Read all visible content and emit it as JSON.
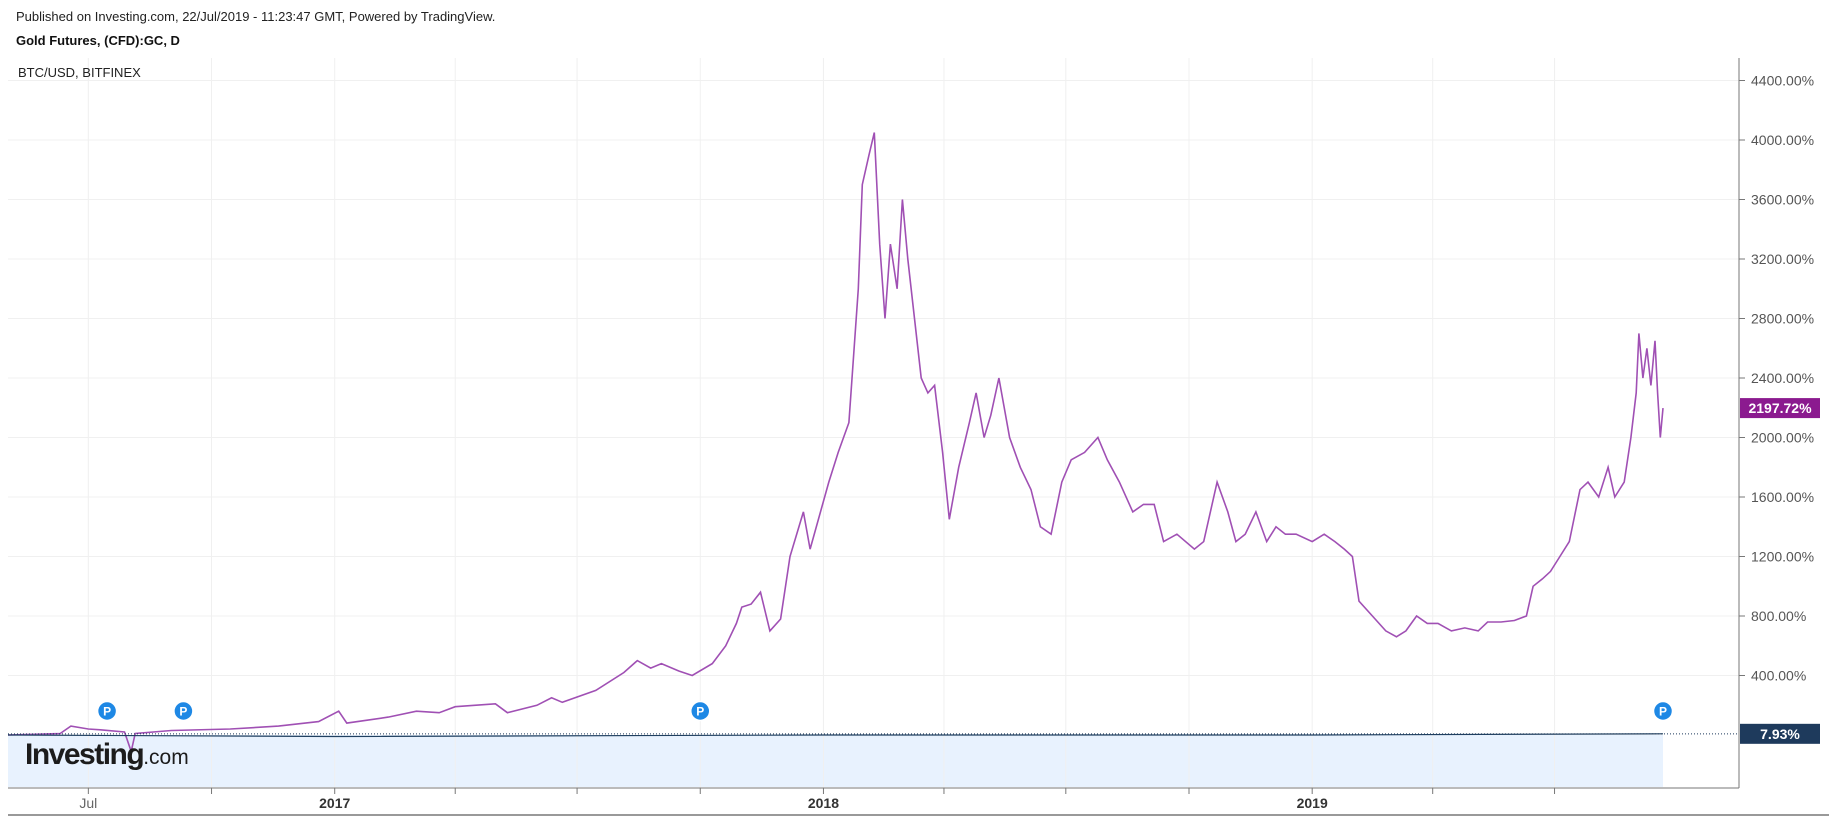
{
  "header": {
    "published": "Published on Investing.com, 22/Jul/2019 - 11:23:47 GMT, Powered by TradingView.",
    "instrument": "Gold Futures, (CFD):GC, D"
  },
  "logo": {
    "main": "Investing",
    "suffix": ".com"
  },
  "chart_data": {
    "type": "line",
    "series_label": "BTC/USD, BITFINEX",
    "yunit": "%",
    "ylim": [
      -500,
      4800
    ],
    "yticks": [
      400,
      800,
      1200,
      1600,
      2000,
      2400,
      2800,
      3200,
      3600,
      4000,
      4400
    ],
    "ytick_labels": [
      "400.00%",
      "800.00%",
      "1200.00%",
      "1600.00%",
      "2000.00%",
      "2400.00%",
      "2800.00%",
      "3200.00%",
      "3600.00%",
      "4000.00%",
      "4400.00%"
    ],
    "xlim": [
      "2016-05-02",
      "2019-09-20"
    ],
    "xticks": [
      {
        "date": "2016-07-01",
        "label": "Jul",
        "bold": false
      },
      {
        "date": "2016-10-01",
        "label": "",
        "bold": false
      },
      {
        "date": "2017-01-01",
        "label": "2017",
        "bold": true
      },
      {
        "date": "2017-04-01",
        "label": "",
        "bold": false
      },
      {
        "date": "2017-07-01",
        "label": "",
        "bold": false
      },
      {
        "date": "2017-10-01",
        "label": "",
        "bold": false
      },
      {
        "date": "2018-01-01",
        "label": "2018",
        "bold": true
      },
      {
        "date": "2018-04-01",
        "label": "",
        "bold": false
      },
      {
        "date": "2018-07-01",
        "label": "",
        "bold": false
      },
      {
        "date": "2018-10-01",
        "label": "",
        "bold": false
      },
      {
        "date": "2019-01-01",
        "label": "2019",
        "bold": true
      },
      {
        "date": "2019-04-01",
        "label": "",
        "bold": false
      },
      {
        "date": "2019-07-01",
        "label": "",
        "bold": false
      }
    ],
    "grid": true,
    "series": [
      {
        "name": "BTC/USD, BITFINEX",
        "color": "#a050b4",
        "last_label": "2197.72%",
        "points": [
          [
            "2016-05-02",
            0
          ],
          [
            "2016-06-10",
            10
          ],
          [
            "2016-06-18",
            60
          ],
          [
            "2016-07-01",
            40
          ],
          [
            "2016-07-10",
            35
          ],
          [
            "2016-07-28",
            20
          ],
          [
            "2016-08-02",
            -110
          ],
          [
            "2016-08-05",
            10
          ],
          [
            "2016-09-01",
            30
          ],
          [
            "2016-10-15",
            40
          ],
          [
            "2016-11-20",
            60
          ],
          [
            "2016-12-20",
            90
          ],
          [
            "2017-01-04",
            160
          ],
          [
            "2017-01-10",
            80
          ],
          [
            "2017-02-10",
            120
          ],
          [
            "2017-03-03",
            160
          ],
          [
            "2017-03-20",
            150
          ],
          [
            "2017-04-01",
            190
          ],
          [
            "2017-05-01",
            210
          ],
          [
            "2017-05-10",
            150
          ],
          [
            "2017-06-01",
            200
          ],
          [
            "2017-06-12",
            250
          ],
          [
            "2017-06-20",
            220
          ],
          [
            "2017-07-15",
            300
          ],
          [
            "2017-08-05",
            420
          ],
          [
            "2017-08-15",
            500
          ],
          [
            "2017-08-25",
            450
          ],
          [
            "2017-09-02",
            480
          ],
          [
            "2017-09-15",
            430
          ],
          [
            "2017-09-25",
            400
          ],
          [
            "2017-10-10",
            480
          ],
          [
            "2017-10-20",
            600
          ],
          [
            "2017-10-28",
            750
          ],
          [
            "2017-11-01",
            860
          ],
          [
            "2017-11-08",
            880
          ],
          [
            "2017-11-15",
            960
          ],
          [
            "2017-11-22",
            700
          ],
          [
            "2017-11-30",
            780
          ],
          [
            "2017-12-07",
            1200
          ],
          [
            "2017-12-17",
            1500
          ],
          [
            "2017-12-22",
            1250
          ],
          [
            "2018-01-05",
            1700
          ],
          [
            "2018-01-12",
            1900
          ],
          [
            "2018-01-20",
            2100
          ],
          [
            "2018-01-27",
            3000
          ],
          [
            "2018-01-30",
            3700
          ],
          [
            "2018-02-04",
            3900
          ],
          [
            "2018-02-08",
            4050
          ],
          [
            "2018-02-12",
            3300
          ],
          [
            "2018-02-16",
            2800
          ],
          [
            "2018-02-20",
            3300
          ],
          [
            "2018-02-25",
            3000
          ],
          [
            "2018-03-01",
            3600
          ],
          [
            "2018-03-05",
            3200
          ],
          [
            "2018-03-10",
            2800
          ],
          [
            "2018-03-15",
            2400
          ],
          [
            "2018-03-20",
            2300
          ],
          [
            "2018-03-25",
            2350
          ],
          [
            "2018-03-31",
            1900
          ],
          [
            "2018-04-05",
            1450
          ],
          [
            "2018-04-12",
            1800
          ],
          [
            "2018-04-20",
            2100
          ],
          [
            "2018-04-25",
            2300
          ],
          [
            "2018-05-01",
            2000
          ],
          [
            "2018-05-06",
            2150
          ],
          [
            "2018-05-12",
            2400
          ],
          [
            "2018-05-20",
            2000
          ],
          [
            "2018-05-28",
            1800
          ],
          [
            "2018-06-05",
            1650
          ],
          [
            "2018-06-12",
            1400
          ],
          [
            "2018-06-20",
            1350
          ],
          [
            "2018-06-28",
            1700
          ],
          [
            "2018-07-05",
            1850
          ],
          [
            "2018-07-15",
            1900
          ],
          [
            "2018-07-25",
            2000
          ],
          [
            "2018-08-01",
            1850
          ],
          [
            "2018-08-10",
            1700
          ],
          [
            "2018-08-20",
            1500
          ],
          [
            "2018-08-28",
            1550
          ],
          [
            "2018-09-05",
            1550
          ],
          [
            "2018-09-12",
            1300
          ],
          [
            "2018-09-22",
            1350
          ],
          [
            "2018-10-05",
            1250
          ],
          [
            "2018-10-12",
            1300
          ],
          [
            "2018-10-22",
            1700
          ],
          [
            "2018-10-30",
            1500
          ],
          [
            "2018-11-05",
            1300
          ],
          [
            "2018-11-12",
            1350
          ],
          [
            "2018-11-20",
            1500
          ],
          [
            "2018-11-28",
            1300
          ],
          [
            "2018-12-05",
            1400
          ],
          [
            "2018-12-12",
            1350
          ],
          [
            "2018-12-20",
            1350
          ],
          [
            "2019-01-01",
            1300
          ],
          [
            "2019-01-10",
            1350
          ],
          [
            "2019-01-18",
            1300
          ],
          [
            "2019-01-25",
            1250
          ],
          [
            "2019-01-31",
            1200
          ],
          [
            "2019-02-05",
            900
          ],
          [
            "2019-02-15",
            800
          ],
          [
            "2019-02-25",
            700
          ],
          [
            "2019-03-05",
            660
          ],
          [
            "2019-03-12",
            700
          ],
          [
            "2019-03-20",
            800
          ],
          [
            "2019-03-28",
            750
          ],
          [
            "2019-04-05",
            750
          ],
          [
            "2019-04-15",
            700
          ],
          [
            "2019-04-25",
            720
          ],
          [
            "2019-05-05",
            700
          ],
          [
            "2019-05-12",
            760
          ],
          [
            "2019-05-22",
            760
          ],
          [
            "2019-06-01",
            770
          ],
          [
            "2019-06-10",
            800
          ],
          [
            "2019-06-15",
            1000
          ],
          [
            "2019-06-22",
            1050
          ],
          [
            "2019-06-28",
            1100
          ],
          [
            "2019-07-05",
            1200
          ],
          [
            "2019-07-12",
            1300
          ],
          [
            "2019-07-20",
            1650
          ],
          [
            "2019-07-26",
            1700
          ],
          [
            "2019-08-03",
            1600
          ],
          [
            "2019-08-10",
            1800
          ],
          [
            "2019-08-15",
            1600
          ],
          [
            "2019-08-22",
            1700
          ],
          [
            "2019-08-27",
            2000
          ],
          [
            "2019-08-31",
            2300
          ],
          [
            "2019-09-02",
            2700
          ],
          [
            "2019-09-05",
            2400
          ],
          [
            "2019-09-08",
            2600
          ],
          [
            "2019-09-11",
            2350
          ],
          [
            "2019-09-14",
            2650
          ],
          [
            "2019-09-16",
            2300
          ],
          [
            "2019-09-18",
            2000
          ],
          [
            "2019-09-20",
            2197.72
          ]
        ]
      },
      {
        "name": "Gold Futures, (CFD):GC, D",
        "color": "#1f3f5f",
        "last_label": "7.93%",
        "points": [
          [
            "2016-05-02",
            0
          ],
          [
            "2017-01-01",
            -10
          ],
          [
            "2018-01-01",
            0
          ],
          [
            "2019-01-01",
            0
          ],
          [
            "2019-09-20",
            7.93
          ]
        ]
      }
    ],
    "markers": [
      {
        "date": "2016-07-15",
        "label": "P"
      },
      {
        "date": "2016-09-10",
        "label": "P"
      },
      {
        "date": "2017-10-01",
        "label": "P"
      },
      {
        "date": "2019-09-20",
        "label": "P"
      }
    ],
    "colors": {
      "btc_badge": "#8b1a8f",
      "gold_badge": "#1e3a5c",
      "volume_band": "#e8f2fe",
      "marker": "#1e88e5"
    }
  }
}
